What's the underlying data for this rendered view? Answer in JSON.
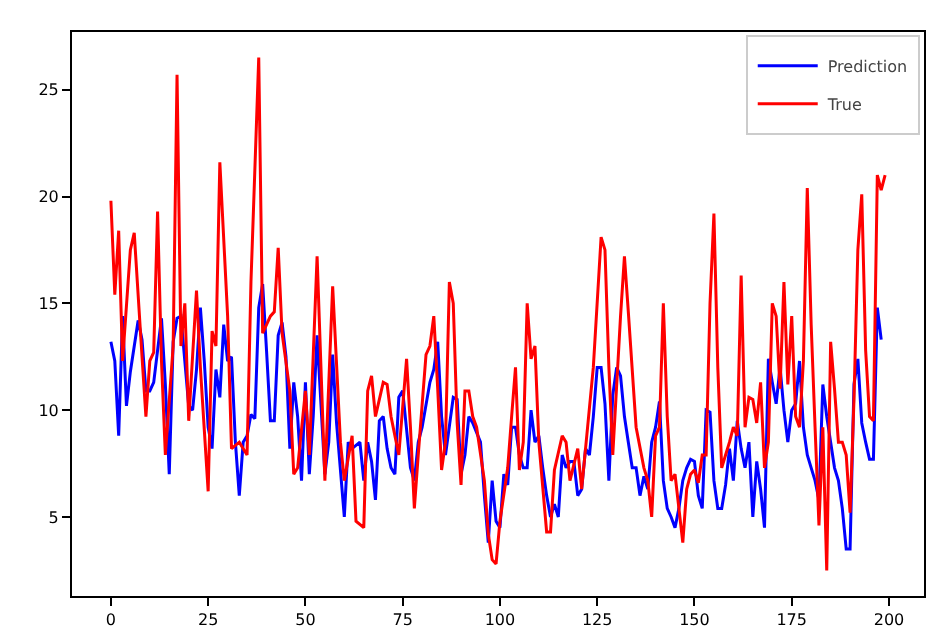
{
  "chart_data": {
    "type": "line",
    "xlim": [
      -10,
      209
    ],
    "ylim": [
      1.3,
      27.7
    ],
    "xticks": [
      0,
      25,
      50,
      75,
      100,
      125,
      150,
      175,
      200
    ],
    "yticks": [
      5,
      10,
      15,
      20,
      25
    ],
    "grid": false,
    "legend": "top right",
    "marker": "none",
    "line_style": "solid",
    "series": [
      {
        "name": "Prediction",
        "color": "#0000ff",
        "x": [
          0,
          1,
          2,
          3,
          4,
          5,
          7,
          8,
          9,
          10,
          11,
          13,
          14,
          15,
          16,
          17,
          18,
          19,
          20,
          21,
          22,
          23,
          24,
          25,
          26,
          27,
          28,
          29,
          30,
          31,
          32,
          33,
          34,
          35,
          36,
          37,
          38,
          39,
          40,
          41,
          42,
          43,
          44,
          45,
          46,
          47,
          48,
          49,
          50,
          51,
          52,
          53,
          55,
          56,
          57,
          58,
          60,
          61,
          62,
          64,
          65,
          66,
          67,
          68,
          69,
          70,
          71,
          72,
          73,
          74,
          75,
          77,
          78,
          79,
          80,
          82,
          83,
          84,
          85,
          86,
          88,
          89,
          90,
          91,
          92,
          93,
          95,
          96,
          97,
          98,
          99,
          100,
          101,
          102,
          103,
          104,
          105,
          106,
          107,
          108,
          109,
          110,
          111,
          112,
          113,
          114,
          115,
          116,
          117,
          118,
          119,
          120,
          121,
          122,
          123,
          124,
          125,
          126,
          127,
          128,
          129,
          130,
          131,
          132,
          133,
          134,
          135,
          136,
          137,
          138,
          139,
          140,
          141,
          142,
          143,
          144,
          145,
          146,
          147,
          148,
          149,
          150,
          151,
          152,
          153,
          154,
          155,
          156,
          157,
          158,
          159,
          160,
          161,
          162,
          163,
          164,
          165,
          166,
          167,
          168,
          169,
          170,
          171,
          172,
          173,
          174,
          175,
          176,
          177,
          178,
          179,
          180,
          181,
          182,
          183,
          184,
          185,
          186,
          187,
          188,
          189,
          190,
          191,
          192,
          193,
          194,
          195,
          196,
          197,
          198
        ],
        "values": [
          13.2,
          12.3,
          8.8,
          14.4,
          10.2,
          11.8,
          14.2,
          13.3,
          10.9,
          10.9,
          11.3,
          14.3,
          11.2,
          7,
          13.2,
          14.3,
          14.4,
          12.3,
          10.2,
          10,
          11.9,
          14.8,
          12.3,
          9.2,
          8.2,
          11.9,
          10.6,
          14,
          12.3,
          12.5,
          8.5,
          6,
          8.5,
          8.8,
          9.8,
          9.6,
          14.8,
          15.9,
          12.8,
          9.5,
          9.5,
          13.5,
          14.1,
          12.5,
          8.2,
          11.3,
          9.7,
          6.7,
          11.3,
          7,
          9.7,
          13.5,
          7,
          8.5,
          12.6,
          9.4,
          5,
          8.5,
          8.2,
          8.5,
          6.7,
          8.5,
          7.6,
          5.8,
          9.5,
          9.7,
          8.2,
          7.3,
          7,
          10.6,
          10.9,
          7.3,
          6.7,
          8.5,
          9.2,
          11.3,
          11.9,
          13.2,
          9.7,
          7.9,
          10.6,
          10.5,
          7,
          7.9,
          9.7,
          9.4,
          8.5,
          6,
          3.8,
          6.7,
          4.8,
          4.5,
          7,
          6.5,
          9.2,
          9.2,
          7.9,
          7.3,
          7.3,
          10,
          8.5,
          8.8,
          7.3,
          6,
          5,
          5.6,
          5,
          7.9,
          7.3,
          7.6,
          7.6,
          6,
          6.3,
          8.2,
          7.9,
          9.7,
          12,
          12,
          10.3,
          6.7,
          10.7,
          12,
          11.6,
          9.7,
          8.5,
          7.3,
          7.3,
          6,
          6.9,
          6.3,
          8.5,
          9.2,
          10.4,
          6.7,
          5.4,
          5,
          4.5,
          5.4,
          6.7,
          7.3,
          7.7,
          7.6,
          6,
          5.4,
          10,
          9.9,
          6.7,
          5.4,
          5.4,
          6.5,
          8.2,
          6.7,
          9.5,
          8.2,
          7.3,
          8.5,
          5,
          7.6,
          6.3,
          4.5,
          12.4,
          11.3,
          10.3,
          12,
          10,
          8.5,
          10,
          10.3,
          12.3,
          9.2,
          7.9,
          7.3,
          6.7,
          5.8,
          11.2,
          9.7,
          8.5,
          7.3,
          6.7,
          5.4,
          3.5,
          3.5,
          11.2,
          12.4,
          9.4,
          8.5,
          7.7,
          7.7,
          14.8,
          13.3
        ]
      },
      {
        "name": "True",
        "color": "#ff0000",
        "x": [
          0,
          1,
          2,
          3,
          5,
          6,
          8,
          9,
          10,
          11,
          12,
          13,
          14,
          16,
          17,
          18,
          19,
          20,
          22,
          23,
          25,
          26,
          27,
          28,
          30,
          31,
          33,
          35,
          36,
          38,
          39,
          41,
          42,
          43,
          44,
          46,
          47,
          48,
          50,
          51,
          53,
          55,
          57,
          59,
          60,
          62,
          63,
          65,
          66,
          67,
          68,
          70,
          71,
          72,
          74,
          76,
          77,
          78,
          79,
          81,
          82,
          83,
          84,
          85,
          86,
          87,
          88,
          89,
          90,
          91,
          92,
          93,
          94,
          96,
          97,
          98,
          99,
          100,
          102,
          103,
          104,
          105,
          106,
          107,
          108,
          109,
          110,
          112,
          113,
          114,
          116,
          117,
          118,
          120,
          121,
          122,
          124,
          126,
          127,
          128,
          129,
          131,
          132,
          133,
          135,
          137,
          138,
          139,
          140,
          141,
          142,
          143,
          144,
          145,
          146,
          147,
          148,
          149,
          150,
          151,
          152,
          153,
          154,
          155,
          156,
          157,
          158,
          159,
          160,
          161,
          162,
          163,
          164,
          165,
          166,
          167,
          168,
          169,
          170,
          171,
          172,
          173,
          174,
          175,
          176,
          177,
          178,
          179,
          180,
          181,
          182,
          183,
          184,
          185,
          186,
          187,
          188,
          189,
          190,
          191,
          192,
          193,
          194,
          195,
          196,
          197,
          198,
          199
        ],
        "values": [
          19.8,
          15.4,
          18.4,
          12.3,
          17.5,
          18.3,
          12.5,
          9.7,
          12.3,
          12.7,
          19.3,
          12.3,
          7.9,
          13,
          25.7,
          13,
          15,
          9.5,
          15.6,
          12,
          6.2,
          13.7,
          13,
          21.6,
          14.4,
          8.2,
          8.5,
          7.9,
          16,
          26.5,
          13.6,
          14.4,
          14.6,
          17.6,
          13.6,
          10.9,
          7,
          7.3,
          10.9,
          7.9,
          17.2,
          6.7,
          15.8,
          8.5,
          6.7,
          8.8,
          4.8,
          4.5,
          10.9,
          11.6,
          9.7,
          11.3,
          11.2,
          9.7,
          7.9,
          12.4,
          9.2,
          5.4,
          7.9,
          12.6,
          13,
          14.4,
          11,
          7.2,
          8.5,
          16,
          15,
          9.4,
          6.5,
          10.9,
          10.9,
          9.7,
          9.2,
          6.7,
          4.2,
          3,
          2.8,
          4.8,
          7.3,
          9.7,
          12,
          7.2,
          8.5,
          15,
          12.4,
          13,
          8.5,
          4.3,
          4.3,
          7.2,
          8.8,
          8.5,
          6.7,
          8.2,
          6.3,
          8.2,
          12,
          18.1,
          17.5,
          12,
          7.9,
          14.4,
          17.2,
          14.6,
          9.2,
          7.3,
          6.7,
          5,
          8.8,
          9.2,
          15,
          9.7,
          6.7,
          7,
          5.4,
          3.8,
          6.3,
          7,
          7.2,
          6.6,
          7.9,
          7.9,
          15,
          19.2,
          12,
          7.3,
          7.9,
          8.5,
          9.2,
          8.8,
          16.3,
          9.2,
          10.6,
          10.5,
          9.4,
          11.3,
          7.3,
          8.5,
          15,
          14.4,
          11,
          16,
          11.2,
          14.4,
          9.7,
          9.2,
          12.3,
          20.4,
          14,
          9.2,
          4.6,
          9.2,
          2.5,
          13.2,
          11,
          8.5,
          8.5,
          7.9,
          5.2,
          10.5,
          17.5,
          20.1,
          12.8,
          9.7,
          9.5,
          21,
          20.3,
          21
        ]
      }
    ]
  }
}
